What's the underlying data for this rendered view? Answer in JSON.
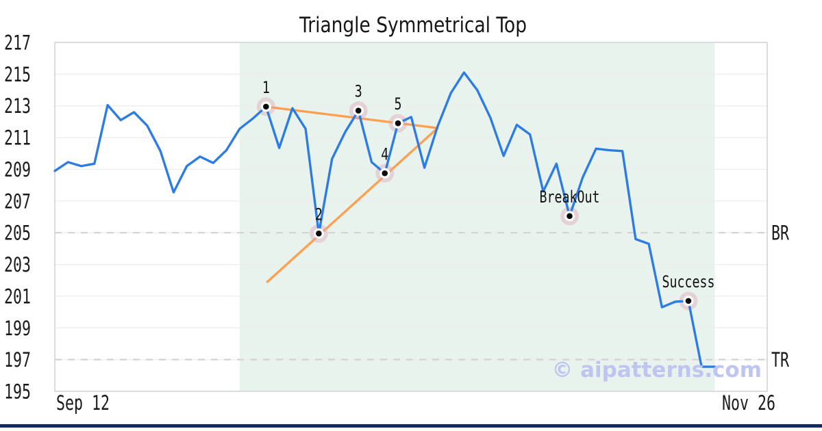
{
  "title": "Triangle Symmetrical Top",
  "watermark": "© aipatterns.com",
  "colors": {
    "price_line": "#2d7ce5",
    "trendline": "#ffa050",
    "shaded_region": "#e9f3ee",
    "marker_halo": "rgba(220,165,182,0.42)",
    "marker_ring": "#ffffff",
    "marker_dot": "#0a0a0a",
    "grid": "#ececec",
    "plot_border": "#d4d4d4",
    "dashed_level": "#d2d2d2",
    "text": "#1a1a1a",
    "watermark_color": "#bfc5f1",
    "bottom_bar": "#16295e"
  },
  "chart_data": {
    "type": "line",
    "title": "Triangle Symmetrical Top",
    "ylim": [
      195,
      217
    ],
    "y_ticks": [
      217,
      215,
      213,
      211,
      209,
      207,
      205,
      203,
      201,
      199,
      197,
      195
    ],
    "x_tick_labels": [
      "Sep 12",
      "Nov 26"
    ],
    "grid": true,
    "legend": false,
    "series": [
      {
        "name": "price",
        "values": [
          208.9,
          209.45,
          209.2,
          209.35,
          213.05,
          212.1,
          212.6,
          211.75,
          210.15,
          207.55,
          209.2,
          209.8,
          209.4,
          210.2,
          211.55,
          212.2,
          212.95,
          210.35,
          212.85,
          211.55,
          204.95,
          209.65,
          211.35,
          212.7,
          209.45,
          208.75,
          211.9,
          212.3,
          209.1,
          211.7,
          213.8,
          215.1,
          214.0,
          212.25,
          209.85,
          211.8,
          211.2,
          207.6,
          209.35,
          206.05,
          208.5,
          210.3,
          210.2,
          210.15,
          204.6,
          204.3,
          200.3,
          200.65,
          200.7,
          196.55,
          196.55
        ]
      }
    ],
    "markers": [
      {
        "label": "1",
        "index": 16,
        "value": 212.95
      },
      {
        "label": "2",
        "index": 20,
        "value": 204.95
      },
      {
        "label": "3",
        "index": 23,
        "value": 212.7
      },
      {
        "label": "4",
        "index": 25,
        "value": 208.75
      },
      {
        "label": "5",
        "index": 26,
        "value": 211.9
      },
      {
        "label": "BreakOut",
        "index": 39,
        "value": 206.05
      },
      {
        "label": "Success",
        "index": 48,
        "value": 200.7
      }
    ],
    "trendlines": [
      {
        "name": "upper-resistance",
        "from": {
          "index": 16,
          "value": 212.95
        },
        "to": {
          "index": 29,
          "value": 211.6
        }
      },
      {
        "name": "lower-support",
        "from": {
          "index": 16.1,
          "value": 201.9
        },
        "to": {
          "index": 29,
          "value": 211.6
        }
      }
    ],
    "levels": [
      {
        "label": "BR",
        "value": 205
      },
      {
        "label": "TR",
        "value": 197
      }
    ],
    "shaded_region": {
      "from_index": 14,
      "to_index": 50
    }
  }
}
